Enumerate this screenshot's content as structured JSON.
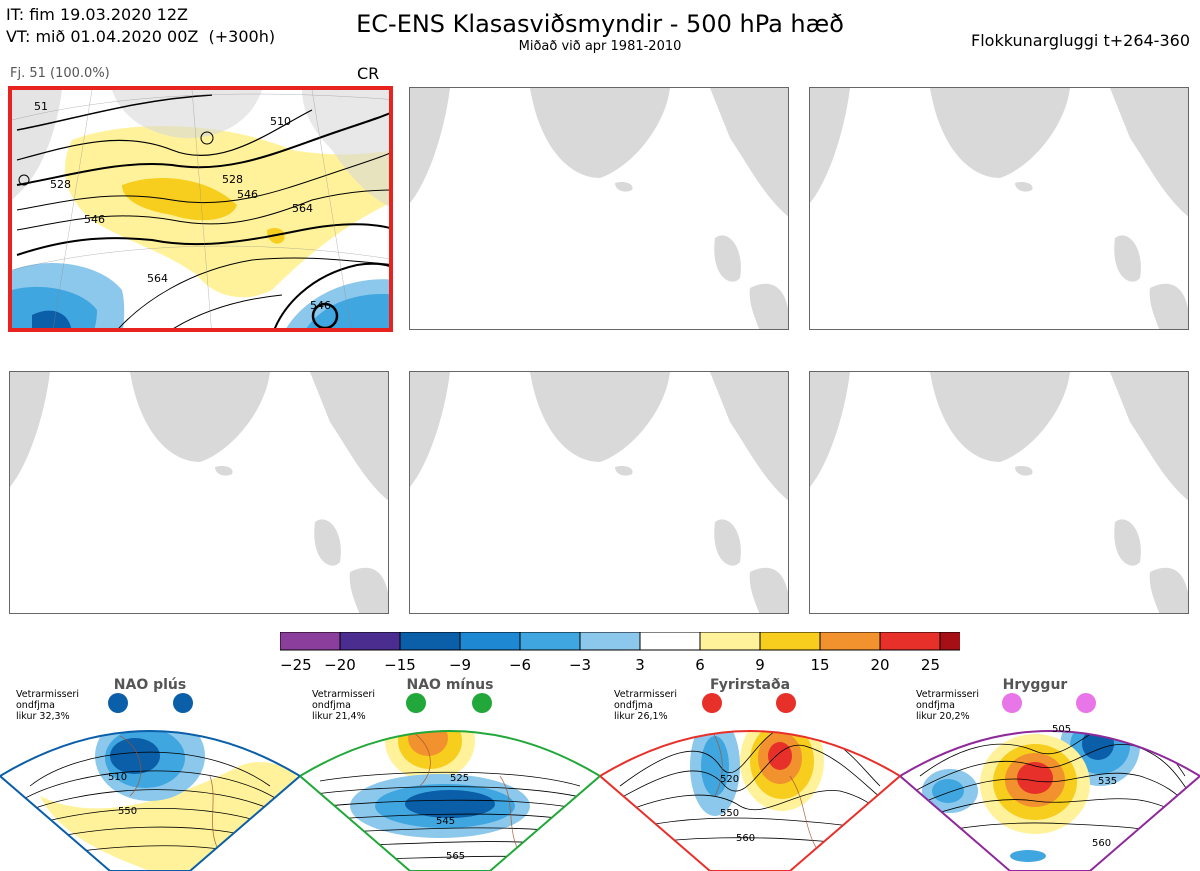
{
  "header": {
    "it_line": "IT: fim 19.03.2020 12Z",
    "vt_line": "VT: mið 01.04.2020 00Z  (+300h)",
    "title": "EC-ENS Klasasviðsmyndir - 500 hPa hæð",
    "subtitle": "Miðað við apr 1981-2010",
    "window": "Flokkunargluggi t+264-360"
  },
  "selected_panel": {
    "members_label": "Fj. 51 (100.0%)",
    "regime_code": "CR",
    "contour_labels": [
      "51",
      "510",
      "528",
      "528",
      "546",
      "546",
      "564",
      "564",
      "546"
    ]
  },
  "colorbar": {
    "ticks": [
      "−25",
      "−20",
      "−15",
      "−9",
      "−6",
      "−3",
      "3",
      "6",
      "9",
      "15",
      "20",
      "25"
    ],
    "colors": [
      "#8b3e9b",
      "#4a2d8f",
      "#0b5ea8",
      "#1e88d2",
      "#3fa6e0",
      "#8cc8ec",
      "#ffffff",
      "#fff29a",
      "#f7ce1e",
      "#f2922e",
      "#e8302a",
      "#a50f15"
    ]
  },
  "regimes": [
    {
      "name": "NAO plús",
      "info": "Vetrarmisseri\nondfjma\nlikur 32,3%",
      "color": "#0b5ea8",
      "labels": [
        "510",
        "550"
      ]
    },
    {
      "name": "NAO mínus",
      "info": "Vetrarmisseri\nondfjma\nlikur 21,4%",
      "color": "#22a83a",
      "labels": [
        "525",
        "545",
        "565"
      ]
    },
    {
      "name": "Fyrirstaða",
      "info": "Vetrarmisseri\nondfjma\nlikur 26,1%",
      "color": "#e8302a",
      "labels": [
        "520",
        "550",
        "560"
      ]
    },
    {
      "name": "Hryggur",
      "info": "Vetrarmisseri\nondfjma\nlikur 20,2%",
      "color": "#8e2a9a",
      "labels": [
        "505",
        "535",
        "560"
      ]
    }
  ],
  "colors": {
    "land": "#d9d9d9",
    "coast": "#7a5533",
    "selected_border": "#e8221f"
  }
}
